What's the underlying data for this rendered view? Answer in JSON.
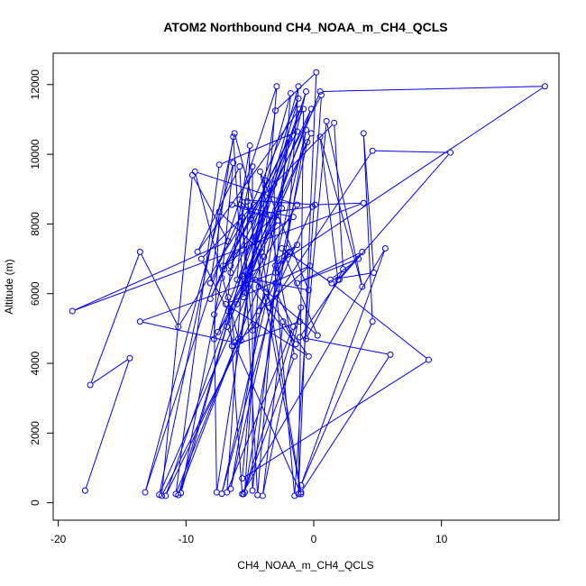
{
  "chart_data": {
    "type": "line",
    "title": "ATOM2 Northbound CH4_NOAA_m_CH4_QCLS",
    "xlabel": "CH4_NOAA_m_CH4_QCLS",
    "ylabel": "Altitude (m)",
    "xlim": [
      -20.4,
      19.2
    ],
    "ylim": [
      -500,
      12900
    ],
    "x_ticks": [
      -20,
      -10,
      0,
      10
    ],
    "y_ticks": [
      0,
      2000,
      4000,
      6000,
      8000,
      10000,
      12000
    ],
    "grid": false,
    "marker": "open-circle",
    "series": [
      {
        "color": "#0000ff",
        "points": [
          [
            -17.9,
            350
          ],
          [
            -14.4,
            4150
          ],
          [
            -17.5,
            3380
          ],
          [
            -13.6,
            7200
          ],
          [
            -10.6,
            5050
          ],
          [
            -4.7,
            8550
          ],
          [
            -6.2,
            10600
          ],
          [
            -12.1,
            230
          ],
          [
            -3.9,
            7050
          ],
          [
            -2.9,
            11950
          ],
          [
            -13.2,
            300
          ],
          [
            -6.3,
            9750
          ],
          [
            -7.2,
            6450
          ],
          [
            -10.4,
            280
          ],
          [
            -1.8,
            11750
          ],
          [
            -4.4,
            220
          ],
          [
            -5.8,
            9650
          ],
          [
            -9.1,
            7200
          ],
          [
            -1.1,
            11300
          ],
          [
            -11.6,
            200
          ],
          [
            -5.7,
            4650
          ],
          [
            -3.8,
            9250
          ],
          [
            -5.4,
            300
          ],
          [
            -0.6,
            10700
          ],
          [
            -7.2,
            260
          ],
          [
            -2.1,
            7300
          ],
          [
            -1.2,
            11950
          ],
          [
            -5.5,
            6150
          ],
          [
            -1.2,
            11600
          ],
          [
            -8.1,
            5850
          ],
          [
            -1.9,
            10450
          ],
          [
            -6.5,
            400
          ],
          [
            -0.5,
            10350
          ],
          [
            -6.0,
            5700
          ],
          [
            -0.6,
            11800
          ],
          [
            -4.3,
            6200
          ],
          [
            -10.8,
            250
          ],
          [
            -7.4,
            9700
          ],
          [
            -1.3,
            10650
          ],
          [
            -4.9,
            8150
          ],
          [
            -7.0,
            6700
          ],
          [
            -0.8,
            11300
          ],
          [
            -1.2,
            250
          ],
          [
            0.2,
            12350
          ],
          [
            -3.0,
            11250
          ],
          [
            -7.6,
            300
          ],
          [
            -7.8,
            5400
          ],
          [
            -0.2,
            11300
          ],
          [
            -5.5,
            5900
          ],
          [
            -6.3,
            10500
          ],
          [
            -8.1,
            6300
          ],
          [
            -5.2,
            8650
          ],
          [
            -1.0,
            250
          ],
          [
            -6.8,
            5050
          ],
          [
            -0.2,
            10600
          ],
          [
            -5.3,
            6650
          ],
          [
            -5.0,
            10250
          ],
          [
            -6.5,
            6600
          ],
          [
            -4.8,
            9650
          ],
          [
            -4.8,
            350
          ],
          [
            -3.0,
            6300
          ],
          [
            -3.1,
            9150
          ],
          [
            -7.5,
            4900
          ],
          [
            -2.8,
            8100
          ],
          [
            -6.4,
            8550
          ],
          [
            -1.6,
            8200
          ],
          [
            -7.1,
            6800
          ],
          [
            -2.5,
            8450
          ],
          [
            -6.7,
            5500
          ],
          [
            -8.8,
            7000
          ],
          [
            1.6,
            10900
          ],
          [
            2.3,
            6700
          ],
          [
            -0.6,
            4700
          ],
          [
            1.0,
            10950
          ],
          [
            3.8,
            6200
          ],
          [
            0.5,
            10500
          ],
          [
            1.9,
            6400
          ],
          [
            3.8,
            7200
          ],
          [
            -1.3,
            6300
          ],
          [
            3.5,
            7000
          ],
          [
            1.3,
            6400
          ],
          [
            4.7,
            6600
          ],
          [
            3.9,
            10600
          ],
          [
            4.6,
            5200
          ],
          [
            -1.0,
            500
          ],
          [
            5.6,
            7300
          ],
          [
            -5.6,
            250
          ],
          [
            -6.7,
            5900
          ],
          [
            -6.5,
            6800
          ],
          [
            0.6,
            11700
          ],
          [
            -1.5,
            200
          ],
          [
            -2.9,
            6000
          ],
          [
            -1.6,
            5050
          ],
          [
            -6.8,
            300
          ],
          [
            -5.6,
            6500
          ],
          [
            -1.4,
            4550
          ],
          [
            -2.4,
            5200
          ],
          [
            -4.0,
            200
          ],
          [
            -1.0,
            5600
          ],
          [
            -5.5,
            250
          ],
          [
            -1.5,
            4200
          ],
          [
            -4.2,
            9500
          ],
          [
            -0.4,
            6100
          ],
          [
            -4.6,
            6400
          ],
          [
            -0.4,
            4200
          ],
          [
            -6.9,
            5700
          ],
          [
            -0.3,
            6800
          ],
          [
            -4.3,
            5500
          ],
          [
            -3.7,
            6050
          ],
          [
            -11.9,
            200
          ],
          [
            -9.5,
            9400
          ],
          [
            -6.7,
            7500
          ],
          [
            -18.9,
            5500
          ],
          [
            3.9,
            8600
          ],
          [
            0.1,
            8550
          ],
          [
            -5.8,
            8700
          ],
          [
            -4.8,
            8250
          ],
          [
            -0.1,
            8500
          ],
          [
            -3.5,
            5600
          ],
          [
            4.6,
            10100
          ],
          [
            10.7,
            10050
          ],
          [
            2.0,
            6400
          ],
          [
            -1.1,
            4750
          ],
          [
            6.0,
            4250
          ],
          [
            -1.0,
            300
          ],
          [
            -4.1,
            7200
          ],
          [
            -7.4,
            8350
          ],
          [
            -7.8,
            4700
          ],
          [
            -1.3,
            8550
          ],
          [
            -9.3,
            9500
          ],
          [
            -5.9,
            4700
          ],
          [
            -10.6,
            220
          ],
          [
            -6.5,
            5500
          ],
          [
            -6.2,
            4600
          ],
          [
            -13.6,
            5200
          ],
          [
            -3.0,
            6600
          ],
          [
            -1.9,
            7200
          ],
          [
            -4.8,
            4950
          ],
          [
            -5.6,
            8200
          ],
          [
            -6.0,
            6400
          ],
          [
            -2.9,
            7000
          ],
          [
            -1.3,
            7400
          ],
          [
            -3.0,
            6800
          ],
          [
            18.1,
            11950
          ],
          [
            0.5,
            11800
          ],
          [
            -5.2,
            6550
          ],
          [
            0.3,
            4800
          ],
          [
            -2.5,
            7300
          ],
          [
            1.4,
            6300
          ],
          [
            9.0,
            4100
          ],
          [
            -5.6,
            700
          ],
          [
            -4.5,
            5100
          ],
          [
            -6.4,
            4500
          ],
          [
            -1.1,
            5200
          ]
        ]
      }
    ]
  }
}
